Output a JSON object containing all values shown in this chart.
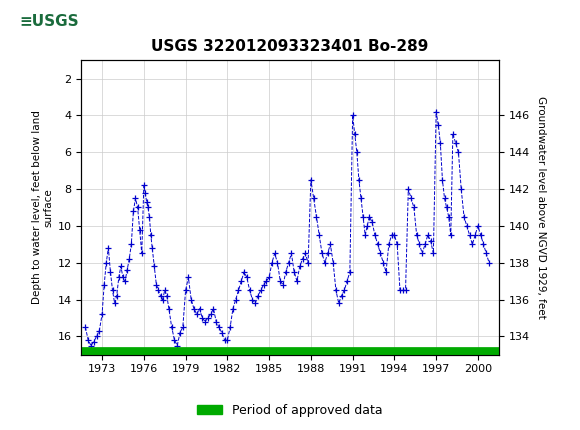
{
  "title": "USGS 322012093323401 Bo-289",
  "ylabel_left": "Depth to water level, feet below land\nsurface",
  "ylabel_right": "Groundwater level above NGVD 1929, feet",
  "header_color": "#1a6b3c",
  "plot_bg": "#ffffff",
  "grid_color": "#cccccc",
  "line_color": "#0000cc",
  "legend_label": "Period of approved data",
  "legend_color": "#00aa00",
  "ylim_left": [
    17,
    1
  ],
  "ylim_right": [
    133,
    149
  ],
  "yticks_left": [
    2,
    4,
    6,
    8,
    10,
    12,
    14,
    16
  ],
  "yticks_right": [
    134,
    136,
    138,
    140,
    142,
    144,
    146
  ],
  "xlim": [
    1971.5,
    2001.5
  ],
  "xticks": [
    1973,
    1976,
    1979,
    1982,
    1985,
    1988,
    1991,
    1994,
    1997,
    2000
  ],
  "data_x": [
    1971.8,
    1972.0,
    1972.2,
    1972.4,
    1972.6,
    1972.8,
    1973.0,
    1973.15,
    1973.3,
    1973.45,
    1973.6,
    1973.75,
    1973.9,
    1974.05,
    1974.2,
    1974.35,
    1974.5,
    1974.65,
    1974.8,
    1974.95,
    1975.1,
    1975.25,
    1975.4,
    1975.55,
    1975.7,
    1975.85,
    1976.0,
    1976.1,
    1976.2,
    1976.3,
    1976.4,
    1976.5,
    1976.6,
    1976.75,
    1976.9,
    1977.05,
    1977.2,
    1977.35,
    1977.5,
    1977.65,
    1977.8,
    1978.0,
    1978.2,
    1978.4,
    1978.6,
    1978.8,
    1979.0,
    1979.2,
    1979.4,
    1979.6,
    1979.8,
    1980.0,
    1980.2,
    1980.4,
    1980.6,
    1980.8,
    1981.0,
    1981.2,
    1981.4,
    1981.6,
    1981.8,
    1982.0,
    1982.2,
    1982.4,
    1982.6,
    1982.8,
    1983.0,
    1983.2,
    1983.4,
    1983.6,
    1983.8,
    1984.0,
    1984.2,
    1984.4,
    1984.6,
    1984.8,
    1985.0,
    1985.2,
    1985.4,
    1985.6,
    1985.8,
    1986.0,
    1986.2,
    1986.4,
    1986.6,
    1986.8,
    1987.0,
    1987.2,
    1987.4,
    1987.6,
    1987.8,
    1988.0,
    1988.2,
    1988.4,
    1988.6,
    1988.8,
    1989.0,
    1989.2,
    1989.4,
    1989.6,
    1989.8,
    1990.0,
    1990.2,
    1990.4,
    1990.6,
    1990.8,
    1991.0,
    1991.15,
    1991.3,
    1991.45,
    1991.6,
    1991.75,
    1991.9,
    1992.05,
    1992.2,
    1992.4,
    1992.6,
    1992.8,
    1993.0,
    1993.2,
    1993.4,
    1993.6,
    1993.8,
    1994.0,
    1994.2,
    1994.4,
    1994.6,
    1994.8,
    1995.0,
    1995.2,
    1995.4,
    1995.6,
    1995.8,
    1996.0,
    1996.2,
    1996.4,
    1996.6,
    1996.8,
    1997.0,
    1997.15,
    1997.3,
    1997.45,
    1997.6,
    1997.75,
    1997.9,
    1998.05,
    1998.2,
    1998.4,
    1998.6,
    1998.8,
    1999.0,
    1999.2,
    1999.4,
    1999.6,
    1999.8,
    2000.0,
    2000.2,
    2000.4,
    2000.6,
    2000.8
  ],
  "data_y": [
    15.5,
    16.2,
    16.5,
    16.3,
    16.0,
    15.7,
    14.8,
    13.2,
    12.0,
    11.2,
    12.5,
    13.5,
    14.2,
    13.8,
    12.8,
    12.2,
    12.8,
    13.0,
    12.4,
    11.8,
    11.0,
    9.2,
    8.5,
    9.0,
    10.2,
    11.5,
    7.8,
    8.2,
    8.7,
    9.0,
    9.5,
    10.5,
    11.2,
    12.2,
    13.2,
    13.5,
    13.8,
    14.0,
    13.5,
    13.8,
    14.5,
    15.5,
    16.2,
    16.5,
    15.8,
    15.5,
    13.5,
    12.8,
    14.0,
    14.5,
    14.8,
    14.5,
    15.0,
    15.2,
    15.0,
    14.8,
    14.5,
    15.2,
    15.5,
    15.8,
    16.2,
    16.2,
    15.5,
    14.5,
    14.0,
    13.5,
    13.0,
    12.5,
    12.8,
    13.5,
    14.0,
    14.2,
    13.8,
    13.5,
    13.2,
    13.0,
    12.8,
    12.0,
    11.5,
    12.0,
    13.0,
    13.2,
    12.5,
    12.0,
    11.5,
    12.5,
    13.0,
    12.2,
    11.8,
    11.5,
    12.0,
    7.5,
    8.5,
    9.5,
    10.5,
    11.5,
    12.0,
    11.5,
    11.0,
    12.0,
    13.5,
    14.2,
    13.8,
    13.5,
    13.0,
    12.5,
    4.0,
    5.0,
    6.0,
    7.5,
    8.5,
    9.5,
    10.5,
    10.0,
    9.5,
    9.8,
    10.5,
    11.0,
    11.5,
    12.0,
    12.5,
    11.0,
    10.5,
    10.5,
    11.0,
    13.5,
    13.5,
    13.5,
    8.0,
    8.5,
    9.0,
    10.5,
    11.0,
    11.5,
    11.0,
    10.5,
    10.8,
    11.5,
    3.8,
    4.5,
    5.5,
    7.5,
    8.5,
    9.0,
    9.5,
    10.5,
    5.0,
    5.5,
    6.0,
    8.0,
    9.5,
    10.0,
    10.5,
    11.0,
    10.5,
    10.0,
    10.5,
    11.0,
    11.5,
    12.0
  ]
}
